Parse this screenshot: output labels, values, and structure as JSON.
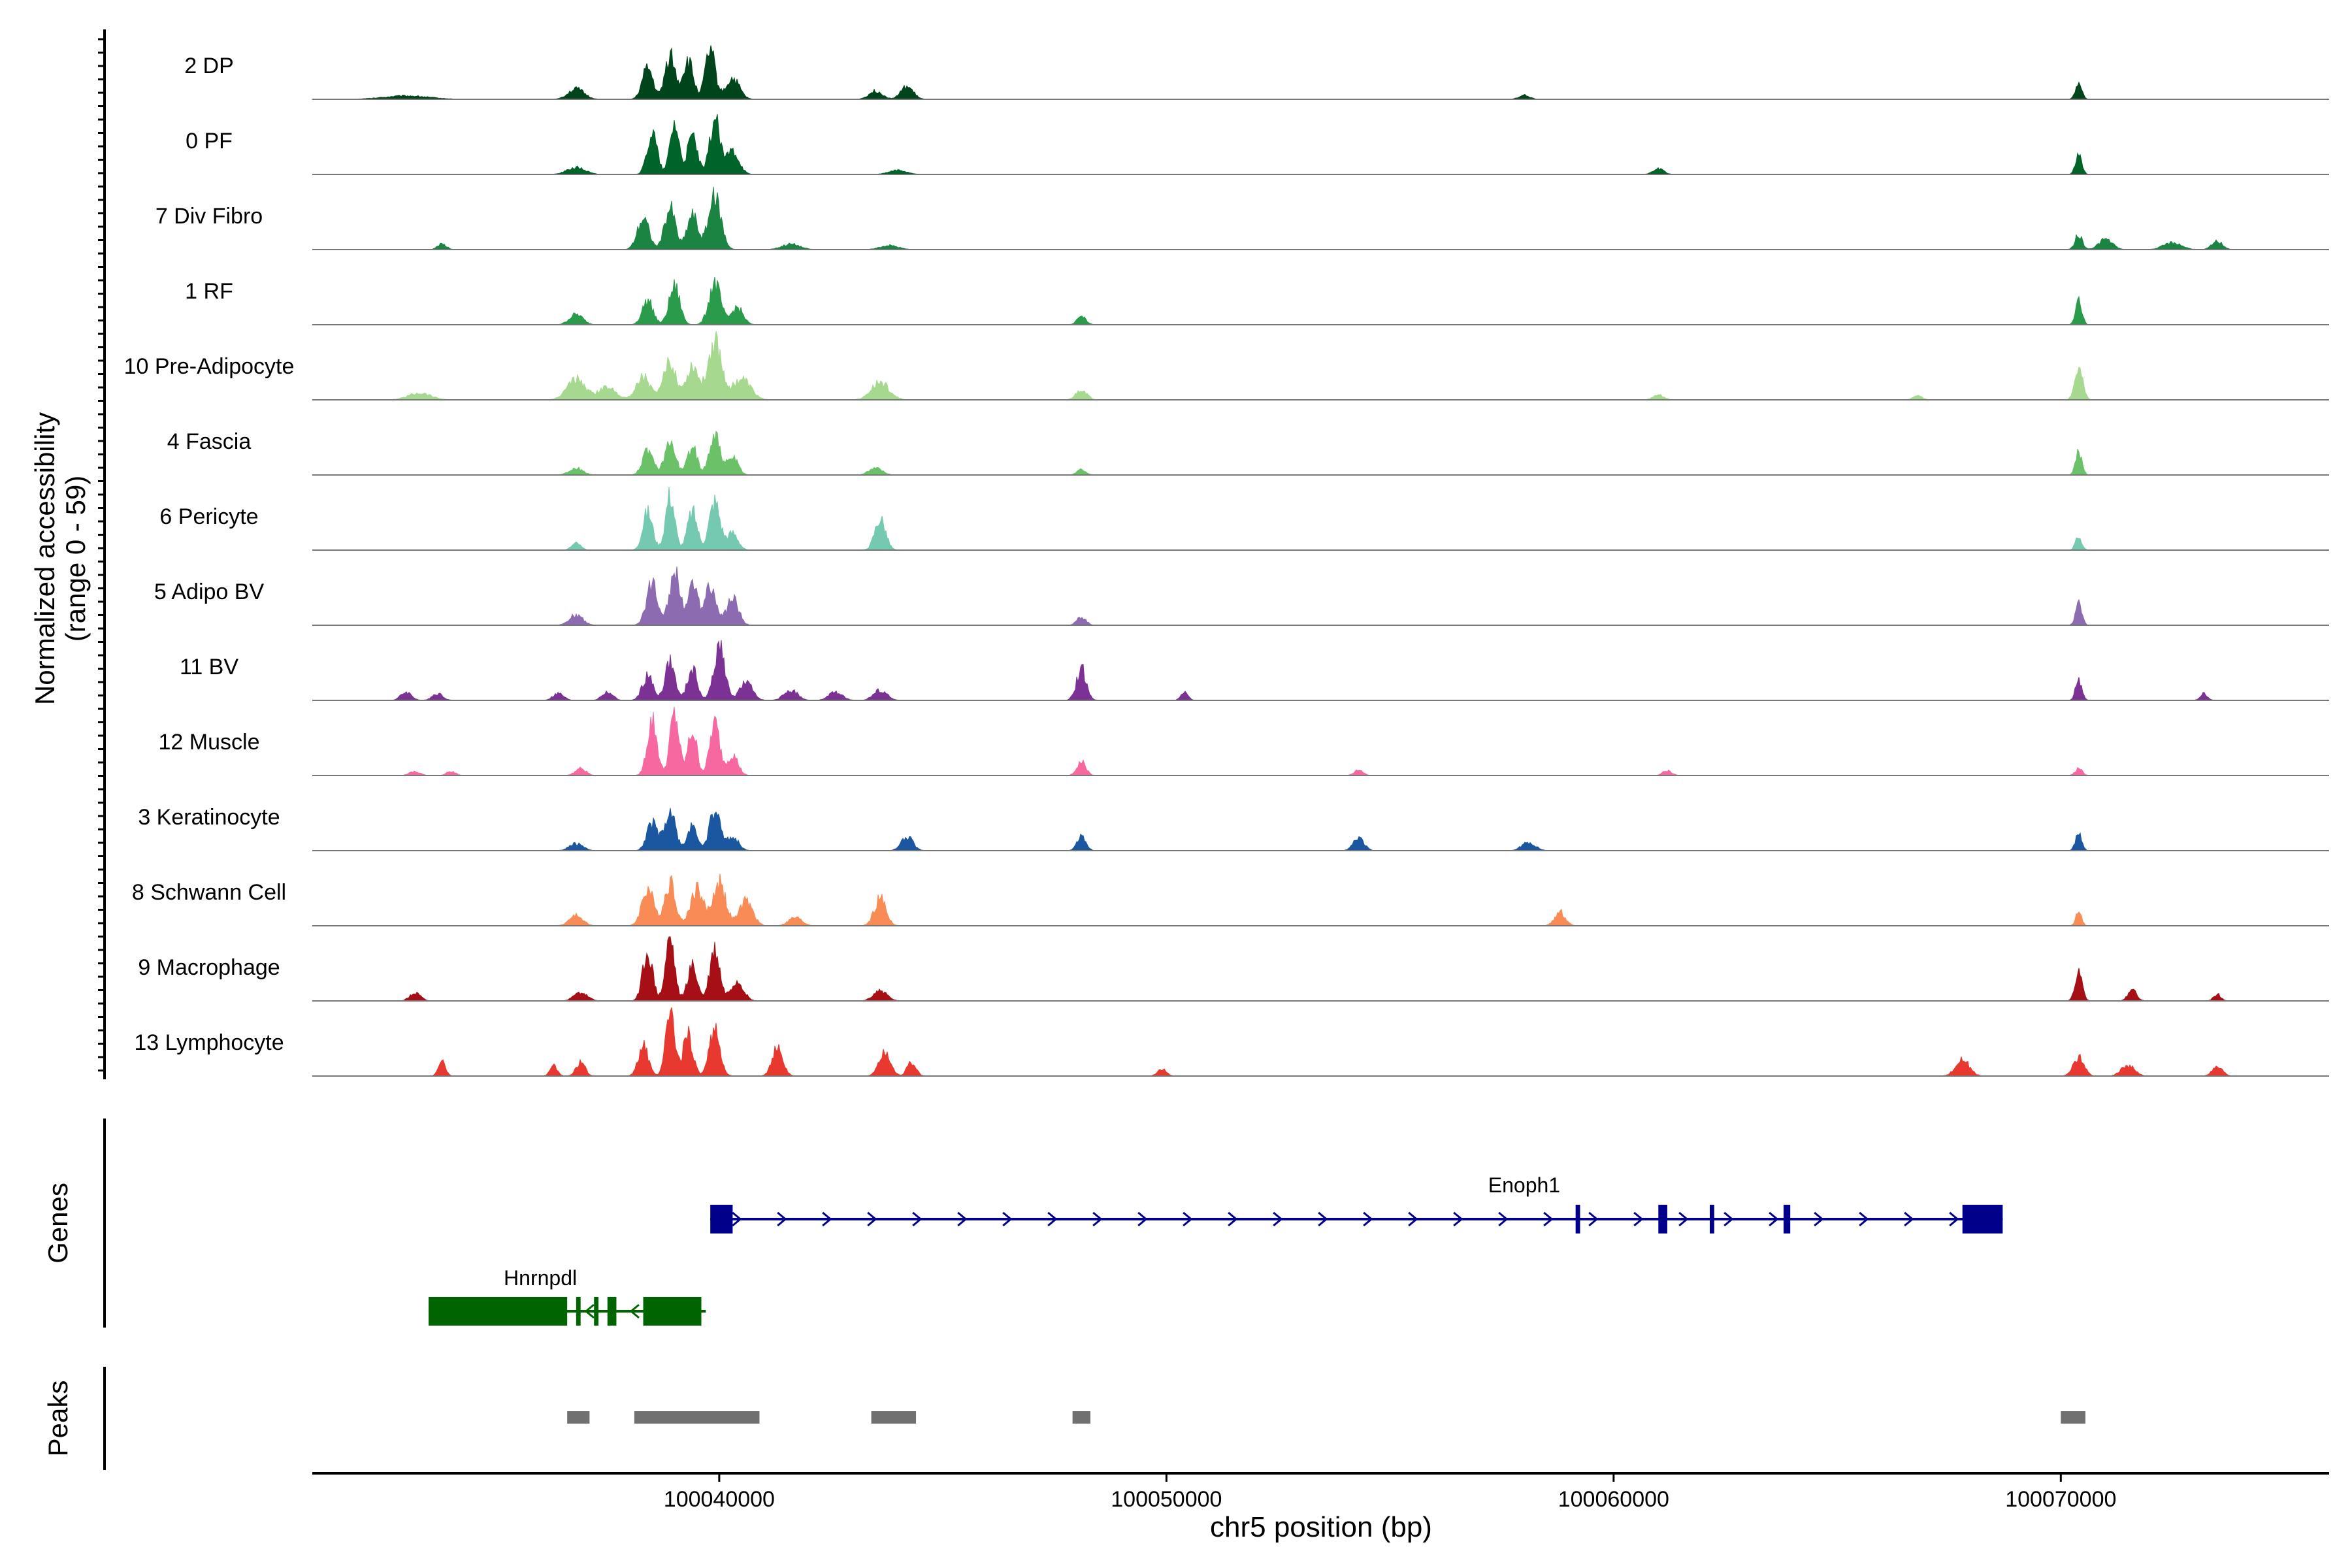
{
  "chart_data": {
    "type": "area",
    "title": "",
    "xlabel": "chr5 position (bp)",
    "ylabel": "Normalized accessibility",
    "ylabel_range": "(range 0 - 59)",
    "y_range": [
      0,
      59
    ],
    "xlim": [
      100030900,
      100076000
    ],
    "x_ticks": [
      100040000,
      100050000,
      100060000,
      100070000
    ],
    "x_tick_labels": [
      "100040000",
      "100050000",
      "100060000",
      "100070000"
    ],
    "genes_label": "Genes",
    "peaks_label": "Peaks",
    "tracks": [
      {
        "name": "2 DP",
        "color": "#00441b",
        "peaks": [
          [
            100033000,
            0.05,
            500
          ],
          [
            100036800,
            0.15,
            180
          ],
          [
            100038400,
            0.45,
            120
          ],
          [
            100038900,
            0.65,
            110
          ],
          [
            100039300,
            0.55,
            120
          ],
          [
            100039800,
            0.7,
            110
          ],
          [
            100040300,
            0.3,
            150
          ],
          [
            100043500,
            0.12,
            150
          ],
          [
            100044200,
            0.18,
            140
          ],
          [
            100058000,
            0.06,
            120
          ],
          [
            100070400,
            0.25,
            70
          ]
        ]
      },
      {
        "name": "0 PF",
        "color": "#00632a",
        "peaks": [
          [
            100036800,
            0.1,
            200
          ],
          [
            100038500,
            0.6,
            110
          ],
          [
            100039000,
            0.75,
            100
          ],
          [
            100039400,
            0.55,
            110
          ],
          [
            100039900,
            0.8,
            110
          ],
          [
            100040300,
            0.35,
            140
          ],
          [
            100044000,
            0.06,
            200
          ],
          [
            100061000,
            0.08,
            120
          ],
          [
            100070400,
            0.3,
            70
          ]
        ]
      },
      {
        "name": "7 Div Fibro",
        "color": "#1b8443",
        "peaks": [
          [
            100033800,
            0.08,
            100
          ],
          [
            100038300,
            0.45,
            130
          ],
          [
            100038900,
            0.6,
            120
          ],
          [
            100039400,
            0.5,
            120
          ],
          [
            100039900,
            0.75,
            140
          ],
          [
            100041600,
            0.08,
            200
          ],
          [
            100043800,
            0.06,
            200
          ],
          [
            100070400,
            0.22,
            80
          ],
          [
            100071000,
            0.15,
            150
          ],
          [
            100072500,
            0.1,
            200
          ],
          [
            100073500,
            0.12,
            120
          ]
        ]
      },
      {
        "name": "1 RF",
        "color": "#2a9a4b",
        "peaks": [
          [
            100036800,
            0.15,
            150
          ],
          [
            100038400,
            0.35,
            120
          ],
          [
            100039000,
            0.55,
            120
          ],
          [
            100039900,
            0.6,
            130
          ],
          [
            100040400,
            0.25,
            130
          ],
          [
            100048100,
            0.12,
            100
          ],
          [
            100070400,
            0.35,
            70
          ]
        ]
      },
      {
        "name": "10 Pre-Adipocyte",
        "color": "#a6d98f",
        "peaks": [
          [
            100033300,
            0.1,
            250
          ],
          [
            100036800,
            0.3,
            200
          ],
          [
            100037500,
            0.18,
            200
          ],
          [
            100038300,
            0.35,
            150
          ],
          [
            100038900,
            0.55,
            140
          ],
          [
            100039400,
            0.5,
            130
          ],
          [
            100039900,
            0.85,
            150
          ],
          [
            100040500,
            0.3,
            200
          ],
          [
            100043600,
            0.25,
            200
          ],
          [
            100048100,
            0.15,
            120
          ],
          [
            100061000,
            0.07,
            120
          ],
          [
            100066800,
            0.06,
            100
          ],
          [
            100070400,
            0.45,
            90
          ]
        ]
      },
      {
        "name": "4 Fascia",
        "color": "#6bc168",
        "peaks": [
          [
            100036800,
            0.1,
            150
          ],
          [
            100038400,
            0.35,
            120
          ],
          [
            100038900,
            0.5,
            120
          ],
          [
            100039400,
            0.4,
            110
          ],
          [
            100039900,
            0.6,
            120
          ],
          [
            100040300,
            0.25,
            120
          ],
          [
            100043500,
            0.1,
            150
          ],
          [
            100048100,
            0.08,
            100
          ],
          [
            100070400,
            0.35,
            70
          ]
        ]
      },
      {
        "name": "6 Pericyte",
        "color": "#74c9b0",
        "peaks": [
          [
            100036800,
            0.1,
            100
          ],
          [
            100038400,
            0.55,
            110
          ],
          [
            100038900,
            0.8,
            100
          ],
          [
            100039400,
            0.55,
            110
          ],
          [
            100039900,
            0.7,
            120
          ],
          [
            100040300,
            0.25,
            120
          ],
          [
            100043600,
            0.45,
            120
          ],
          [
            100070400,
            0.2,
            70
          ]
        ]
      },
      {
        "name": "5 Adipo BV",
        "color": "#8c6bb1",
        "peaks": [
          [
            100036800,
            0.15,
            150
          ],
          [
            100038500,
            0.6,
            130
          ],
          [
            100039000,
            0.75,
            120
          ],
          [
            100039400,
            0.55,
            120
          ],
          [
            100039800,
            0.6,
            120
          ],
          [
            100040300,
            0.4,
            130
          ],
          [
            100048100,
            0.12,
            100
          ],
          [
            100070400,
            0.3,
            70
          ]
        ]
      },
      {
        "name": "11 BV",
        "color": "#7b3294",
        "peaks": [
          [
            100033000,
            0.12,
            120
          ],
          [
            100033700,
            0.1,
            120
          ],
          [
            100036400,
            0.1,
            120
          ],
          [
            100037500,
            0.12,
            120
          ],
          [
            100038400,
            0.35,
            120
          ],
          [
            100038900,
            0.55,
            110
          ],
          [
            100039400,
            0.45,
            110
          ],
          [
            100040000,
            0.8,
            120
          ],
          [
            100040600,
            0.25,
            150
          ],
          [
            100041600,
            0.15,
            150
          ],
          [
            100042600,
            0.12,
            150
          ],
          [
            100043600,
            0.15,
            150
          ],
          [
            100048100,
            0.45,
            110
          ],
          [
            100050400,
            0.12,
            80
          ],
          [
            100070400,
            0.3,
            70
          ],
          [
            100073200,
            0.1,
            80
          ]
        ]
      },
      {
        "name": "12 Muscle",
        "color": "#f768a1",
        "peaks": [
          [
            100033200,
            0.06,
            120
          ],
          [
            100034000,
            0.06,
            100
          ],
          [
            100036900,
            0.1,
            120
          ],
          [
            100038500,
            0.8,
            110
          ],
          [
            100039000,
            0.9,
            100
          ],
          [
            100039400,
            0.65,
            100
          ],
          [
            100039900,
            0.75,
            110
          ],
          [
            100040300,
            0.3,
            120
          ],
          [
            100048100,
            0.2,
            100
          ],
          [
            100054300,
            0.08,
            100
          ],
          [
            100061200,
            0.07,
            100
          ],
          [
            100070400,
            0.1,
            80
          ]
        ]
      },
      {
        "name": "3 Keratinocyte",
        "color": "#1b57a0",
        "peaks": [
          [
            100036800,
            0.1,
            150
          ],
          [
            100038500,
            0.4,
            120
          ],
          [
            100038900,
            0.55,
            120
          ],
          [
            100039400,
            0.35,
            110
          ],
          [
            100039900,
            0.55,
            120
          ],
          [
            100040300,
            0.2,
            130
          ],
          [
            100044200,
            0.2,
            130
          ],
          [
            100048100,
            0.2,
            100
          ],
          [
            100054300,
            0.18,
            120
          ],
          [
            100058100,
            0.12,
            150
          ],
          [
            100070400,
            0.25,
            70
          ]
        ]
      },
      {
        "name": "8 Schwann Cell",
        "color": "#f98c56",
        "peaks": [
          [
            100036800,
            0.15,
            150
          ],
          [
            100038400,
            0.55,
            130
          ],
          [
            100038900,
            0.65,
            120
          ],
          [
            100039500,
            0.55,
            140
          ],
          [
            100040000,
            0.65,
            140
          ],
          [
            100040600,
            0.35,
            150
          ],
          [
            100041700,
            0.12,
            150
          ],
          [
            100043600,
            0.4,
            130
          ],
          [
            100058800,
            0.2,
            120
          ],
          [
            100070400,
            0.25,
            60
          ]
        ]
      },
      {
        "name": "9 Macrophage",
        "color": "#a50f15",
        "peaks": [
          [
            100033200,
            0.12,
            120
          ],
          [
            100036900,
            0.12,
            150
          ],
          [
            100038400,
            0.7,
            110
          ],
          [
            100038900,
            0.9,
            100
          ],
          [
            100039400,
            0.5,
            110
          ],
          [
            100039900,
            0.75,
            110
          ],
          [
            100040400,
            0.3,
            140
          ],
          [
            100043600,
            0.15,
            150
          ],
          [
            100070400,
            0.4,
            80
          ],
          [
            100071600,
            0.15,
            100
          ],
          [
            100073500,
            0.1,
            80
          ]
        ]
      },
      {
        "name": "13 Lymphocyte",
        "color": "#e7392f",
        "peaks": [
          [
            100033800,
            0.2,
            80
          ],
          [
            100036300,
            0.15,
            80
          ],
          [
            100036900,
            0.2,
            100
          ],
          [
            100038300,
            0.45,
            110
          ],
          [
            100038900,
            0.95,
            100
          ],
          [
            100039300,
            0.6,
            110
          ],
          [
            100039900,
            0.65,
            120
          ],
          [
            100041300,
            0.4,
            120
          ],
          [
            100043700,
            0.35,
            130
          ],
          [
            100044300,
            0.2,
            100
          ],
          [
            100049900,
            0.1,
            100
          ],
          [
            100067800,
            0.25,
            150
          ],
          [
            100070400,
            0.28,
            120
          ],
          [
            100071500,
            0.15,
            150
          ],
          [
            100073500,
            0.12,
            120
          ]
        ]
      }
    ],
    "genes": [
      {
        "name": "Enoph1",
        "strand": "+",
        "color": "#00008b",
        "start": 100039800,
        "end": 100068700,
        "exons": [
          [
            100039800,
            100040300
          ],
          [
            100059150,
            100059250
          ],
          [
            100061000,
            100061200
          ],
          [
            100062150,
            100062250
          ],
          [
            100063800,
            100063950
          ],
          [
            100067800,
            100068700
          ]
        ]
      },
      {
        "name": "Hnrnpdl",
        "strand": "-",
        "color": "#006400",
        "start": 100033500,
        "end": 100039700,
        "exons": [
          [
            100033500,
            100036600
          ],
          [
            100036800,
            100036900
          ],
          [
            100037200,
            100037300
          ],
          [
            100037500,
            100037700
          ],
          [
            100038300,
            100039600
          ]
        ]
      }
    ],
    "peaks": [
      [
        100036600,
        100037100
      ],
      [
        100038100,
        100040900
      ],
      [
        100043400,
        100044400
      ],
      [
        100047900,
        100048300
      ],
      [
        100070000,
        100070550
      ]
    ]
  }
}
